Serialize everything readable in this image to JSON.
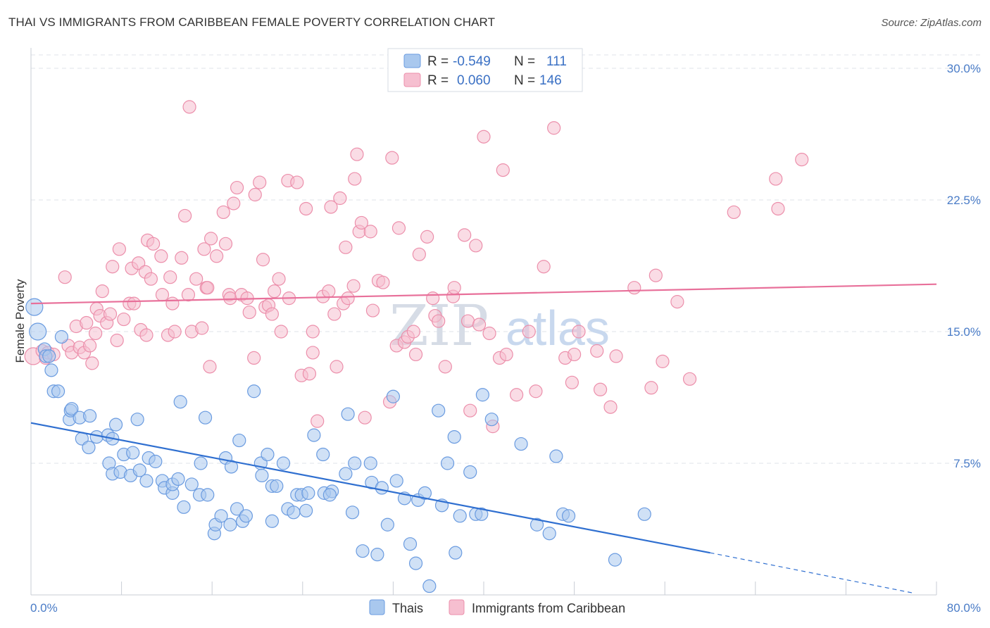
{
  "header": {
    "title": "THAI VS IMMIGRANTS FROM CARIBBEAN FEMALE POVERTY CORRELATION CHART",
    "source": "Source: ZipAtlas.com"
  },
  "watermark": {
    "zip": "ZIP",
    "atlas": "atlas"
  },
  "legend_top": {
    "rows": [
      {
        "r_label": "R =",
        "r_value": "-0.549",
        "n_label": "N =",
        "n_value": "111"
      },
      {
        "r_label": "R =",
        "r_value": "0.060",
        "n_label": "N =",
        "n_value": "146"
      }
    ]
  },
  "colors": {
    "blue_fill": "#a9c8ee",
    "blue_stroke": "#6a9be0",
    "blue_line": "#2f6fd0",
    "pink_fill": "#f6bfd0",
    "pink_stroke": "#ec8fab",
    "pink_line": "#e8709a",
    "grid": "#dfe3ea",
    "tick_text": "#4a7cc7"
  },
  "chart_data": {
    "type": "scatter",
    "title": "THAI VS IMMIGRANTS FROM CARIBBEAN FEMALE POVERTY CORRELATION CHART",
    "xlabel": "",
    "ylabel": "Female Poverty",
    "xlim": [
      0,
      80
    ],
    "ylim": [
      0,
      30
    ],
    "x_tick_labels": [
      "0.0%",
      "80.0%"
    ],
    "y_ticks": [
      7.5,
      15.0,
      22.5,
      30.0
    ],
    "y_tick_labels": [
      "7.5%",
      "15.0%",
      "22.5%",
      "30.0%"
    ],
    "grid": "horizontal dashed",
    "legend": "top-center and bottom",
    "series": [
      {
        "name": "Thais",
        "r": -0.549,
        "n": 111,
        "trend": {
          "x0": 0,
          "y0": 9.8,
          "x1": 60,
          "y1": 2.4,
          "dashed_to_x": 78,
          "dashed_to_y": 0.1
        },
        "points": [
          [
            0.3,
            16.4
          ],
          [
            0.6,
            15.0
          ],
          [
            1.2,
            14.0
          ],
          [
            1.3,
            13.6
          ],
          [
            1.6,
            13.6
          ],
          [
            1.8,
            12.8
          ],
          [
            2.0,
            11.6
          ],
          [
            2.7,
            14.7
          ],
          [
            2.4,
            11.6
          ],
          [
            3.4,
            10.0
          ],
          [
            3.5,
            10.5
          ],
          [
            3.6,
            10.6
          ],
          [
            4.3,
            10.1
          ],
          [
            5.2,
            10.2
          ],
          [
            4.5,
            8.9
          ],
          [
            5.1,
            8.4
          ],
          [
            5.8,
            9.0
          ],
          [
            6.8,
            9.1
          ],
          [
            7.2,
            8.9
          ],
          [
            7.5,
            9.7
          ],
          [
            9.4,
            10.0
          ],
          [
            8.2,
            8.0
          ],
          [
            9.0,
            8.1
          ],
          [
            6.9,
            7.5
          ],
          [
            7.2,
            6.9
          ],
          [
            7.9,
            7.0
          ],
          [
            8.8,
            6.8
          ],
          [
            9.6,
            7.1
          ],
          [
            10.2,
            6.5
          ],
          [
            10.4,
            7.8
          ],
          [
            11.0,
            7.6
          ],
          [
            11.6,
            6.5
          ],
          [
            11.8,
            6.1
          ],
          [
            12.5,
            5.8
          ],
          [
            12.5,
            6.3
          ],
          [
            13.0,
            6.6
          ],
          [
            13.5,
            5.0
          ],
          [
            13.2,
            11.0
          ],
          [
            14.2,
            6.3
          ],
          [
            14.9,
            5.7
          ],
          [
            15.0,
            7.5
          ],
          [
            15.6,
            5.7
          ],
          [
            15.4,
            10.1
          ],
          [
            16.2,
            3.5
          ],
          [
            16.3,
            4.0
          ],
          [
            16.8,
            4.5
          ],
          [
            17.2,
            7.8
          ],
          [
            17.7,
            7.3
          ],
          [
            17.6,
            4.0
          ],
          [
            18.2,
            4.9
          ],
          [
            18.4,
            8.8
          ],
          [
            18.7,
            4.2
          ],
          [
            19.0,
            4.5
          ],
          [
            19.7,
            11.6
          ],
          [
            20.3,
            7.5
          ],
          [
            20.4,
            6.8
          ],
          [
            20.9,
            8.0
          ],
          [
            21.3,
            4.2
          ],
          [
            21.3,
            6.2
          ],
          [
            21.7,
            6.2
          ],
          [
            22.3,
            7.5
          ],
          [
            22.7,
            4.9
          ],
          [
            23.2,
            4.7
          ],
          [
            23.5,
            5.7
          ],
          [
            23.9,
            5.7
          ],
          [
            24.3,
            4.8
          ],
          [
            24.5,
            5.8
          ],
          [
            25.0,
            9.1
          ],
          [
            25.8,
            8.0
          ],
          [
            25.9,
            5.8
          ],
          [
            26.6,
            5.9
          ],
          [
            26.4,
            5.7
          ],
          [
            28.0,
            10.3
          ],
          [
            27.8,
            6.9
          ],
          [
            28.4,
            4.7
          ],
          [
            28.6,
            7.5
          ],
          [
            29.3,
            2.5
          ],
          [
            30.0,
            7.5
          ],
          [
            30.1,
            6.4
          ],
          [
            30.6,
            2.3
          ],
          [
            31.0,
            6.1
          ],
          [
            31.5,
            4.0
          ],
          [
            32.0,
            11.3
          ],
          [
            32.3,
            6.5
          ],
          [
            33.0,
            5.5
          ],
          [
            33.5,
            2.9
          ],
          [
            34.0,
            1.8
          ],
          [
            34.2,
            5.4
          ],
          [
            34.8,
            5.8
          ],
          [
            35.2,
            0.5
          ],
          [
            36.0,
            10.5
          ],
          [
            36.3,
            5.1
          ],
          [
            36.8,
            7.5
          ],
          [
            37.4,
            9.0
          ],
          [
            37.5,
            2.4
          ],
          [
            37.9,
            4.5
          ],
          [
            38.8,
            7.0
          ],
          [
            39.3,
            4.6
          ],
          [
            39.8,
            4.6
          ],
          [
            39.9,
            11.4
          ],
          [
            40.7,
            10.0
          ],
          [
            43.3,
            8.6
          ],
          [
            44.7,
            4.0
          ],
          [
            45.8,
            3.5
          ],
          [
            46.4,
            7.9
          ],
          [
            47.0,
            4.6
          ],
          [
            47.5,
            4.5
          ],
          [
            51.6,
            2.0
          ],
          [
            54.2,
            4.6
          ]
        ]
      },
      {
        "name": "Immigrants from Caribbean",
        "r": 0.06,
        "n": 146,
        "trend": {
          "x0": 0,
          "y0": 16.6,
          "x1": 80,
          "y1": 17.7
        },
        "points": [
          [
            0.2,
            13.6
          ],
          [
            1.0,
            13.9
          ],
          [
            1.3,
            13.5
          ],
          [
            1.5,
            13.8
          ],
          [
            2.0,
            13.7
          ],
          [
            3.0,
            18.1
          ],
          [
            3.3,
            14.2
          ],
          [
            3.6,
            13.8
          ],
          [
            4.0,
            15.3
          ],
          [
            4.3,
            14.1
          ],
          [
            4.7,
            13.8
          ],
          [
            4.9,
            15.5
          ],
          [
            5.2,
            14.2
          ],
          [
            5.4,
            13.2
          ],
          [
            5.7,
            14.9
          ],
          [
            5.8,
            16.3
          ],
          [
            6.1,
            15.9
          ],
          [
            6.3,
            17.3
          ],
          [
            6.7,
            15.5
          ],
          [
            7.0,
            16.0
          ],
          [
            7.2,
            18.7
          ],
          [
            7.6,
            14.5
          ],
          [
            7.8,
            19.7
          ],
          [
            8.2,
            15.7
          ],
          [
            8.7,
            16.6
          ],
          [
            8.9,
            18.6
          ],
          [
            9.1,
            16.6
          ],
          [
            9.5,
            18.9
          ],
          [
            9.7,
            15.1
          ],
          [
            10.1,
            18.4
          ],
          [
            10.2,
            14.8
          ],
          [
            10.3,
            20.2
          ],
          [
            10.6,
            18.0
          ],
          [
            10.8,
            20.0
          ],
          [
            11.5,
            19.3
          ],
          [
            11.6,
            17.1
          ],
          [
            12.1,
            14.8
          ],
          [
            12.3,
            18.1
          ],
          [
            12.5,
            16.6
          ],
          [
            12.7,
            15.0
          ],
          [
            13.3,
            19.2
          ],
          [
            13.6,
            21.6
          ],
          [
            13.9,
            17.1
          ],
          [
            14.2,
            15.0
          ],
          [
            14.6,
            18.0
          ],
          [
            15.1,
            15.2
          ],
          [
            15.3,
            19.7
          ],
          [
            15.5,
            17.5
          ],
          [
            15.6,
            17.5
          ],
          [
            15.8,
            13.0
          ],
          [
            15.9,
            20.3
          ],
          [
            16.4,
            19.3
          ],
          [
            17.0,
            21.8
          ],
          [
            17.2,
            20.0
          ],
          [
            17.5,
            17.1
          ],
          [
            17.6,
            16.9
          ],
          [
            17.9,
            22.3
          ],
          [
            18.2,
            23.2
          ],
          [
            18.6,
            17.1
          ],
          [
            19.1,
            16.9
          ],
          [
            19.3,
            16.1
          ],
          [
            19.7,
            13.5
          ],
          [
            19.8,
            22.8
          ],
          [
            20.2,
            23.5
          ],
          [
            20.5,
            19.1
          ],
          [
            20.7,
            16.4
          ],
          [
            21.0,
            16.5
          ],
          [
            21.3,
            16.0
          ],
          [
            21.5,
            17.3
          ],
          [
            21.9,
            18.0
          ],
          [
            22.1,
            15.0
          ],
          [
            22.7,
            23.6
          ],
          [
            22.8,
            16.9
          ],
          [
            23.5,
            23.5
          ],
          [
            23.9,
            12.5
          ],
          [
            24.3,
            22.0
          ],
          [
            24.6,
            12.6
          ],
          [
            24.9,
            13.8
          ],
          [
            24.9,
            15.0
          ],
          [
            25.3,
            9.9
          ],
          [
            25.8,
            17.0
          ],
          [
            26.3,
            17.3
          ],
          [
            26.5,
            22.1
          ],
          [
            26.8,
            16.0
          ],
          [
            27.0,
            13.0
          ],
          [
            27.3,
            22.6
          ],
          [
            27.6,
            16.6
          ],
          [
            27.8,
            19.8
          ],
          [
            28.0,
            16.9
          ],
          [
            28.5,
            17.6
          ],
          [
            28.6,
            23.7
          ],
          [
            28.8,
            25.1
          ],
          [
            29.0,
            20.7
          ],
          [
            29.2,
            21.2
          ],
          [
            29.5,
            10.1
          ],
          [
            30.0,
            20.7
          ],
          [
            30.2,
            16.2
          ],
          [
            30.7,
            17.9
          ],
          [
            31.1,
            17.8
          ],
          [
            31.7,
            11.0
          ],
          [
            31.9,
            24.9
          ],
          [
            32.3,
            14.2
          ],
          [
            32.5,
            20.9
          ],
          [
            33.0,
            14.4
          ],
          [
            33.3,
            14.7
          ],
          [
            33.8,
            15.0
          ],
          [
            34.0,
            13.7
          ],
          [
            34.3,
            19.4
          ],
          [
            35.0,
            20.4
          ],
          [
            35.5,
            16.9
          ],
          [
            35.7,
            15.9
          ],
          [
            36.0,
            15.6
          ],
          [
            36.6,
            13.0
          ],
          [
            37.3,
            17.0
          ],
          [
            37.4,
            17.5
          ],
          [
            38.3,
            20.5
          ],
          [
            38.6,
            15.6
          ],
          [
            38.8,
            10.5
          ],
          [
            39.3,
            19.9
          ],
          [
            39.6,
            15.4
          ],
          [
            40.0,
            26.1
          ],
          [
            40.5,
            14.9
          ],
          [
            40.8,
            9.6
          ],
          [
            41.4,
            13.5
          ],
          [
            41.7,
            24.2
          ],
          [
            42.0,
            13.7
          ],
          [
            42.9,
            11.4
          ],
          [
            44.0,
            15.0
          ],
          [
            44.6,
            11.6
          ],
          [
            45.3,
            18.7
          ],
          [
            46.2,
            26.6
          ],
          [
            47.2,
            13.5
          ],
          [
            47.8,
            12.1
          ],
          [
            48.0,
            13.7
          ],
          [
            48.4,
            15.0
          ],
          [
            50.0,
            13.9
          ],
          [
            50.3,
            11.7
          ],
          [
            51.2,
            10.7
          ],
          [
            51.7,
            13.6
          ],
          [
            53.3,
            17.5
          ],
          [
            54.8,
            11.8
          ],
          [
            55.2,
            18.2
          ],
          [
            55.8,
            13.3
          ],
          [
            57.1,
            16.7
          ],
          [
            58.2,
            12.3
          ],
          [
            62.1,
            21.8
          ],
          [
            65.8,
            23.7
          ],
          [
            66.0,
            22.0
          ],
          [
            68.1,
            24.8
          ],
          [
            14.0,
            27.8
          ]
        ]
      }
    ]
  },
  "bottom_legend": {
    "items": [
      {
        "label": "Thais"
      },
      {
        "label": "Immigrants from Caribbean"
      }
    ]
  }
}
